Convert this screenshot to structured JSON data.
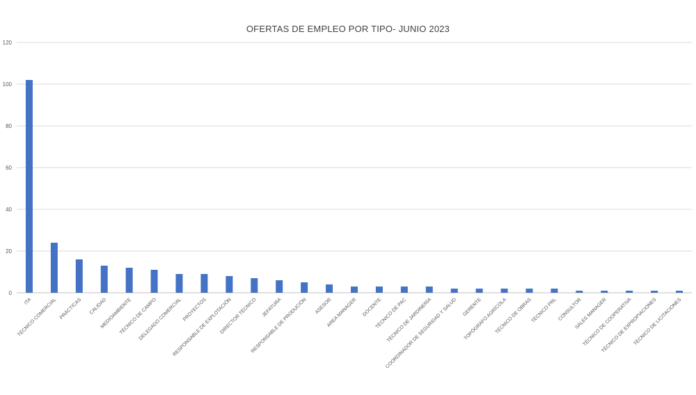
{
  "chart_data": {
    "type": "bar",
    "title": "OFERTAS DE EMPLEO POR TIPO- JUNIO 2023",
    "xlabel": "",
    "ylabel": "",
    "ylim": [
      0,
      120
    ],
    "yticks": [
      0,
      20,
      40,
      60,
      80,
      100,
      120
    ],
    "grid": true,
    "legend": "none",
    "bar_color": "#4472C4",
    "categories": [
      "ITA",
      "TÉCNICO COMERCIAL",
      "PRÁCTICAS",
      "CALIDAD",
      "MEDIOAMBIENTE",
      "TÉCNICO DE CAMPO",
      "DELEGADO COMERCIAL",
      "PROYECTOS",
      "RESPONSABLE DE EXPLOTACIÓN",
      "DIRECTOR TÉCNICO",
      "JEFATURA",
      "RESPONSABLE DE PRODUCIÓN",
      "ASESOR",
      "AREA MANAGER",
      "DOCENTE",
      "TÉCNICO DE PAC",
      "TÉCNICO DE JARDINERÍA",
      "COORDINADOR DE SEGURIDAD Y SALUD",
      "GERENTE",
      "TOPÓGRAFO AGRÍCOLA",
      "TÉCNICO DE OBRAS",
      "TÉCNICO PRL",
      "CONSULTOR",
      "SALES MANAGER",
      "TÉCNICO DE COOPERATIVA",
      "TÉCNICO DE EXPROPIACIONES",
      "TÉCNICO DE LICITACIONES"
    ],
    "values": [
      102,
      24,
      16,
      13,
      12,
      11,
      9,
      9,
      8,
      7,
      6,
      5,
      4,
      3,
      3,
      3,
      3,
      2,
      2,
      2,
      2,
      2,
      1,
      1,
      1,
      1,
      1
    ]
  }
}
